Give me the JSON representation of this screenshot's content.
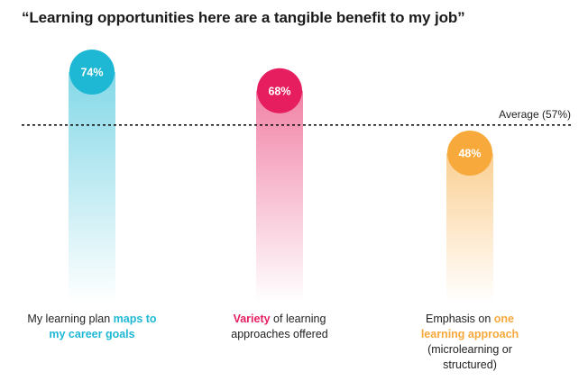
{
  "title": "“Learning opportunities here are a tangible benefit to my job”",
  "chart_data": {
    "type": "bar",
    "title": "“Learning opportunities here are a tangible benefit to my job”",
    "categories": [
      "My learning plan maps to my career goals",
      "Variety of learning approaches offered",
      "Emphasis on one learning approach (microlearning or structured)"
    ],
    "values": [
      74,
      68,
      48
    ],
    "value_labels": [
      "74%",
      "68%",
      "48%"
    ],
    "average": {
      "value": 57,
      "label": "Average (57%)"
    },
    "ylim": [
      0,
      80
    ],
    "grid": false,
    "colors": [
      "#1fb8d4",
      "#e61e5f",
      "#f7a93b"
    ],
    "category_labels": [
      {
        "before": "My learning plan ",
        "highlight": "maps to my career goals",
        "after": ""
      },
      {
        "before": "",
        "highlight": "Variety",
        "after": " of learning approaches offered"
      },
      {
        "before": "Emphasis on ",
        "highlight": "one learning approach",
        "after": " (microlearning or structured)"
      }
    ]
  }
}
